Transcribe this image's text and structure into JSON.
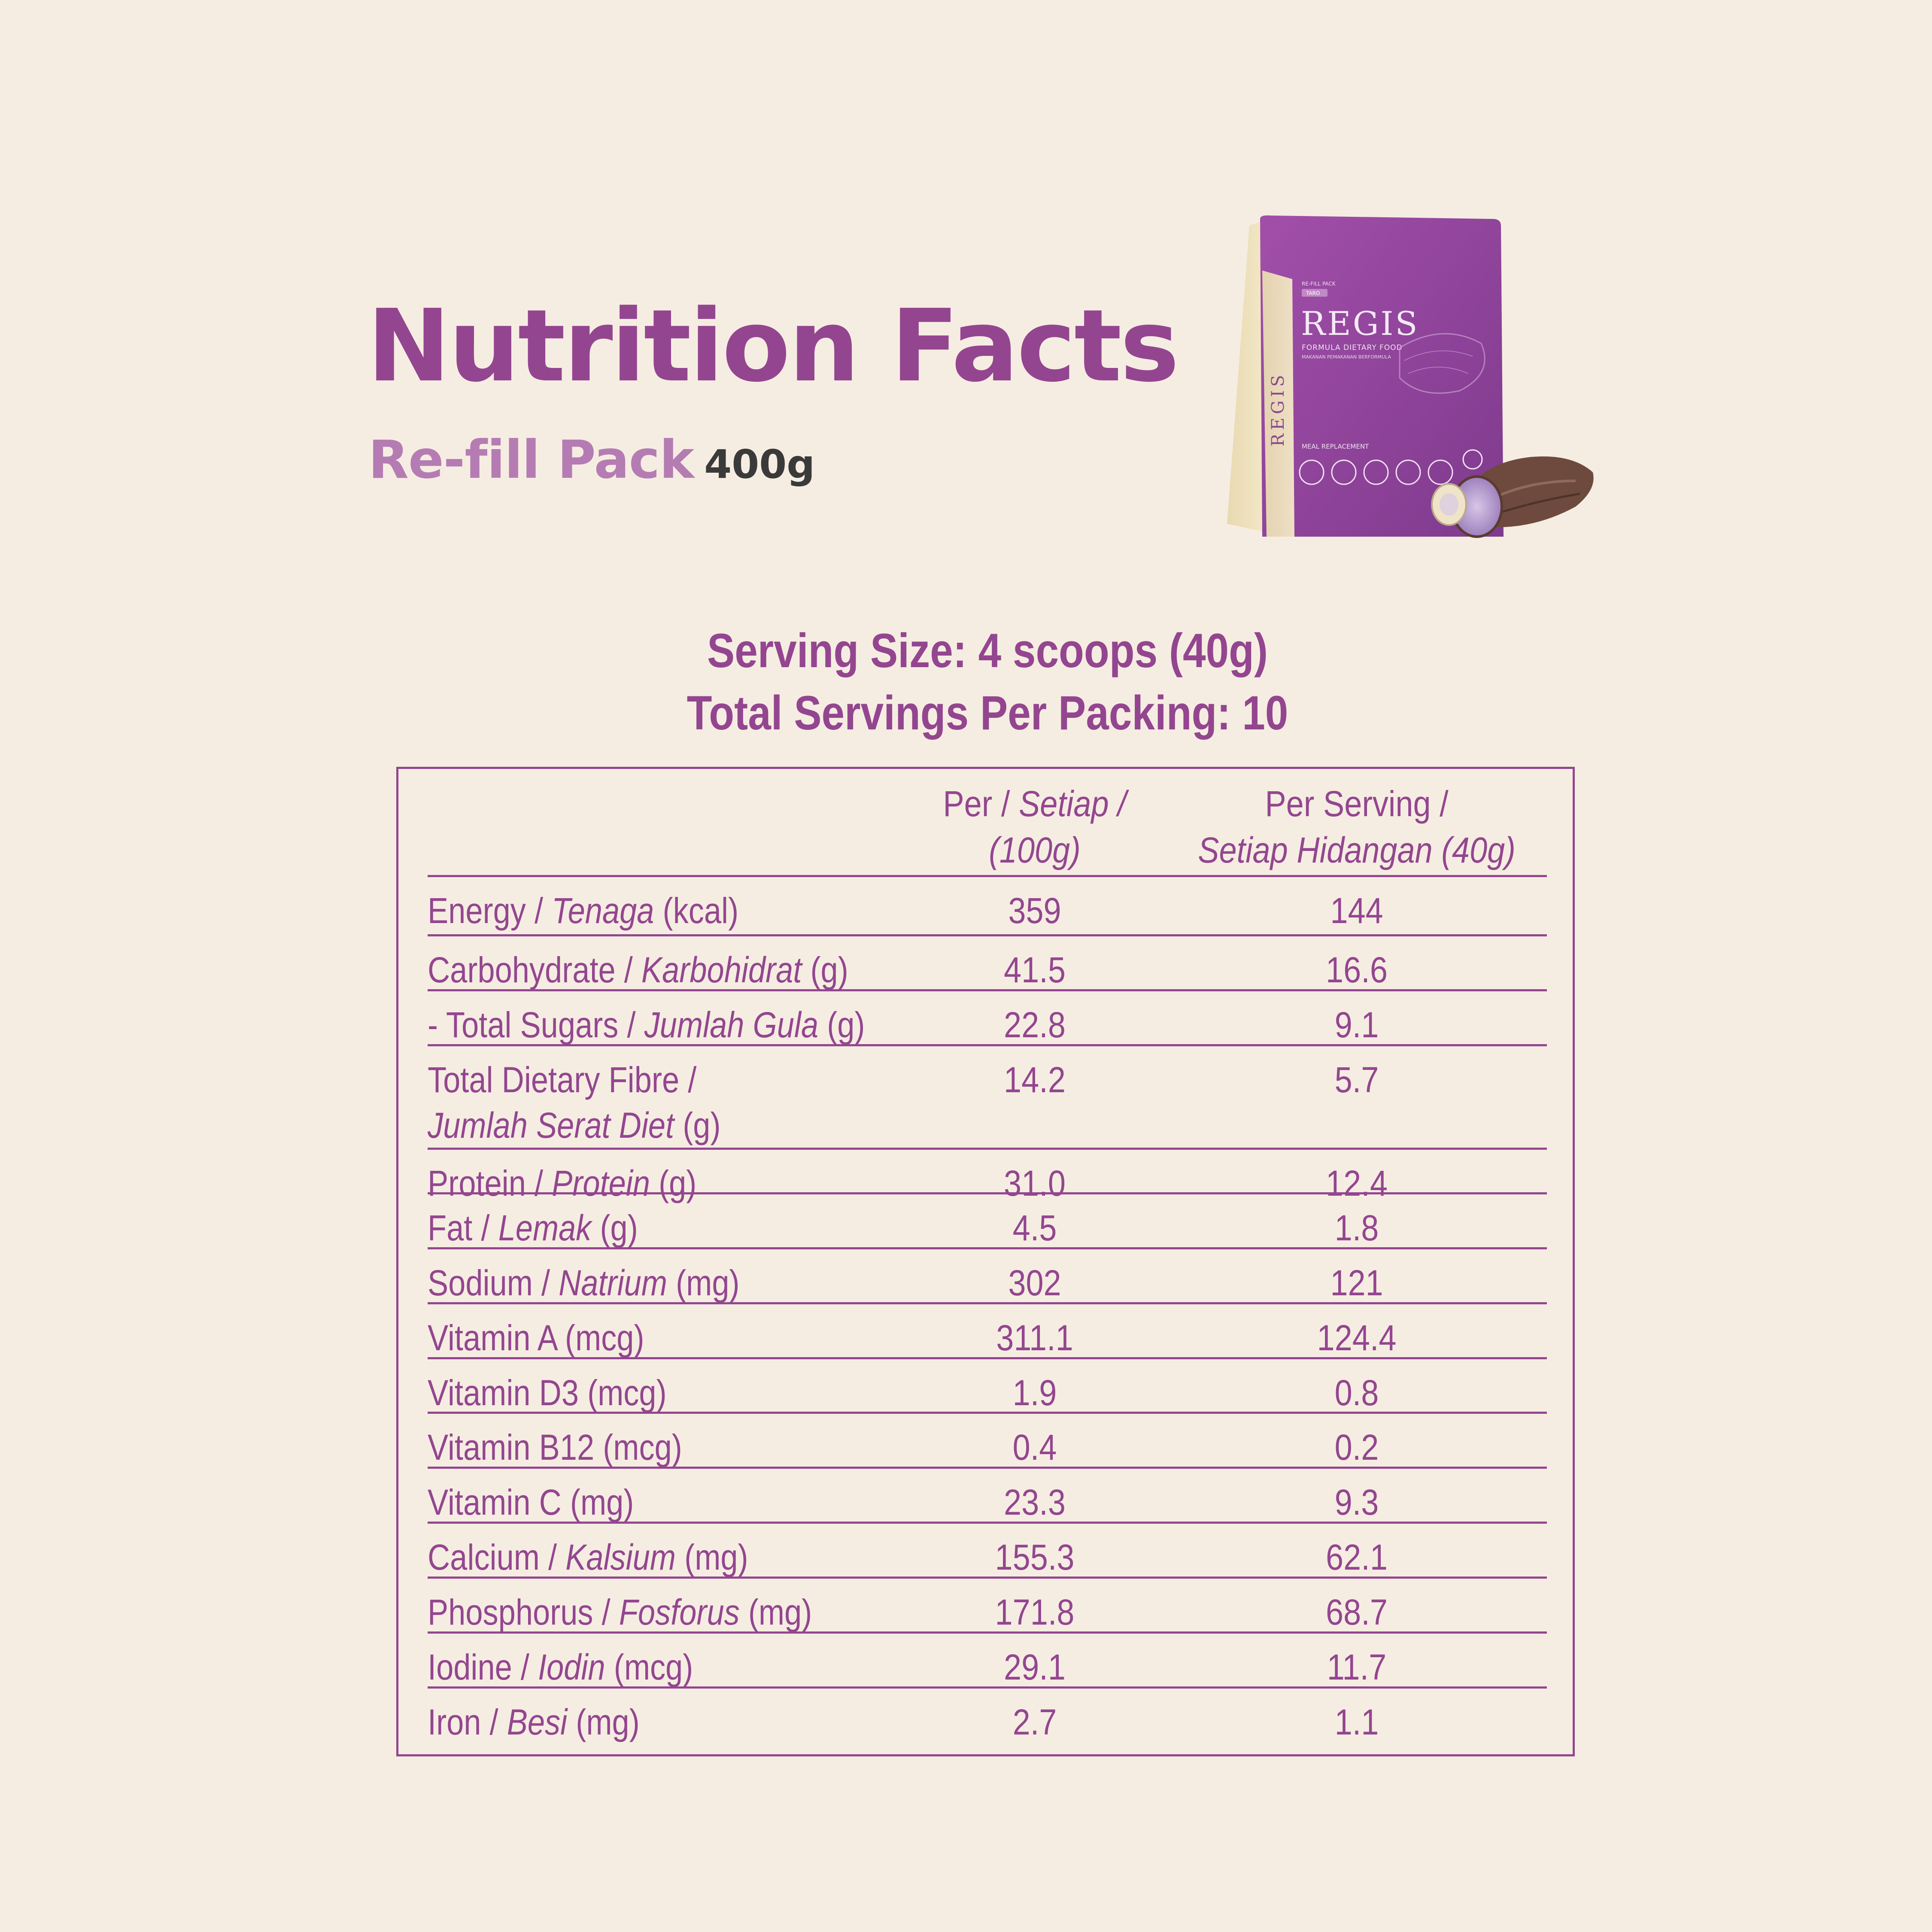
{
  "header": {
    "title": "Nutrition Facts",
    "pack_label": "Re-fill Pack",
    "pack_weight": "400g"
  },
  "product_image": {
    "brand": "REGIS",
    "product_line": "FORMULA DIETARY FOOD",
    "product_line_ms": "MAKANAN PEMAKANAN BERFORMULA",
    "pack_type": "RE-FILL PACK",
    "flavour_tag": "TARO",
    "category": "MEAL REPLACEMENT"
  },
  "serving_info": {
    "serving_size": "Serving Size: 4 scoops (40g)",
    "servings_per_pack": "Total Servings Per Packing: 10"
  },
  "table": {
    "col1_header_line1_a": "Per / ",
    "col1_header_line1_b": "Setiap /",
    "col1_header_line2": "(100g)",
    "col2_header_line1": "Per Serving /",
    "col2_header_line2": "Setiap Hidangan (40g)",
    "rows": [
      {
        "en": "Energy / ",
        "ms": "Tenaga",
        "unit": " (kcal)",
        "per100": "359",
        "perServing": "144"
      },
      {
        "en": "Carbohydrate / ",
        "ms": "Karbohidrat",
        "unit": " (g)",
        "per100": "41.5",
        "perServing": "16.6"
      },
      {
        "en": "- Total Sugars / ",
        "ms": "Jumlah Gula",
        "unit": " (g)",
        "per100": "22.8",
        "perServing": "9.1"
      },
      {
        "en": "Total Dietary Fibre /",
        "ms": "Jumlah Serat Diet",
        "unit": " (g)",
        "per100": "14.2",
        "perServing": "5.7"
      },
      {
        "en": "Protein / ",
        "ms": "Protein",
        "unit": " (g)",
        "per100": "31.0",
        "perServing": "12.4"
      },
      {
        "en": "Fat / ",
        "ms": "Lemak",
        "unit": " (g)",
        "per100": "4.5",
        "perServing": "1.8"
      },
      {
        "en": "Sodium / ",
        "ms": "Natrium",
        "unit": " (mg)",
        "per100": "302",
        "perServing": "121"
      },
      {
        "en": "Vitamin A (mcg)",
        "ms": "",
        "unit": "",
        "per100": "311.1",
        "perServing": "124.4"
      },
      {
        "en": "Vitamin D3 (mcg)",
        "ms": "",
        "unit": "",
        "per100": "1.9",
        "perServing": "0.8"
      },
      {
        "en": "Vitamin B12 (mcg)",
        "ms": "",
        "unit": "",
        "per100": "0.4",
        "perServing": "0.2"
      },
      {
        "en": "Vitamin C (mg)",
        "ms": "",
        "unit": "",
        "per100": "23.3",
        "perServing": "9.3"
      },
      {
        "en": "Calcium / ",
        "ms": "Kalsium",
        "unit": " (mg)",
        "per100": "155.3",
        "perServing": "62.1"
      },
      {
        "en": "Phosphorus / ",
        "ms": "Fosforus",
        "unit": " (mg)",
        "per100": "171.8",
        "perServing": "68.7"
      },
      {
        "en": "Iodine / ",
        "ms": "Iodin",
        "unit": " (mcg)",
        "per100": "29.1",
        "perServing": "11.7"
      },
      {
        "en": "Iron / ",
        "ms": "Besi",
        "unit": " (mg)",
        "per100": "2.7",
        "perServing": "1.1"
      }
    ]
  },
  "colors": {
    "accent": "#93468f",
    "accent_light": "#b57cb3",
    "background": "#f6ede2",
    "dark_text": "#3a3a3a"
  }
}
